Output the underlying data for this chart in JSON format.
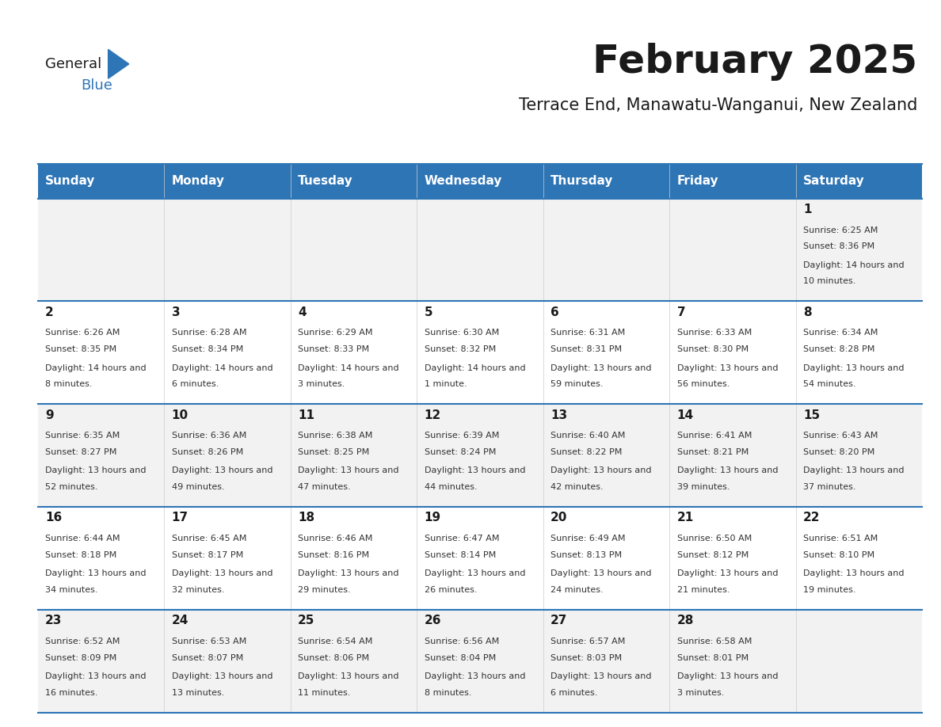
{
  "title": "February 2025",
  "subtitle": "Terrace End, Manawatu-Wanganui, New Zealand",
  "days_of_week": [
    "Sunday",
    "Monday",
    "Tuesday",
    "Wednesday",
    "Thursday",
    "Friday",
    "Saturday"
  ],
  "header_bg": "#2E75B6",
  "header_text": "#FFFFFF",
  "row_bg_odd": "#F2F2F2",
  "row_bg_even": "#FFFFFF",
  "separator_color": "#2E75B6",
  "text_color": "#333333",
  "calendar_data": [
    [
      null,
      null,
      null,
      null,
      null,
      null,
      {
        "day": 1,
        "sunrise": "6:25 AM",
        "sunset": "8:36 PM",
        "daylight": "14 hours and 10 minutes"
      }
    ],
    [
      {
        "day": 2,
        "sunrise": "6:26 AM",
        "sunset": "8:35 PM",
        "daylight": "14 hours and 8 minutes"
      },
      {
        "day": 3,
        "sunrise": "6:28 AM",
        "sunset": "8:34 PM",
        "daylight": "14 hours and 6 minutes"
      },
      {
        "day": 4,
        "sunrise": "6:29 AM",
        "sunset": "8:33 PM",
        "daylight": "14 hours and 3 minutes"
      },
      {
        "day": 5,
        "sunrise": "6:30 AM",
        "sunset": "8:32 PM",
        "daylight": "14 hours and 1 minute"
      },
      {
        "day": 6,
        "sunrise": "6:31 AM",
        "sunset": "8:31 PM",
        "daylight": "13 hours and 59 minutes"
      },
      {
        "day": 7,
        "sunrise": "6:33 AM",
        "sunset": "8:30 PM",
        "daylight": "13 hours and 56 minutes"
      },
      {
        "day": 8,
        "sunrise": "6:34 AM",
        "sunset": "8:28 PM",
        "daylight": "13 hours and 54 minutes"
      }
    ],
    [
      {
        "day": 9,
        "sunrise": "6:35 AM",
        "sunset": "8:27 PM",
        "daylight": "13 hours and 52 minutes"
      },
      {
        "day": 10,
        "sunrise": "6:36 AM",
        "sunset": "8:26 PM",
        "daylight": "13 hours and 49 minutes"
      },
      {
        "day": 11,
        "sunrise": "6:38 AM",
        "sunset": "8:25 PM",
        "daylight": "13 hours and 47 minutes"
      },
      {
        "day": 12,
        "sunrise": "6:39 AM",
        "sunset": "8:24 PM",
        "daylight": "13 hours and 44 minutes"
      },
      {
        "day": 13,
        "sunrise": "6:40 AM",
        "sunset": "8:22 PM",
        "daylight": "13 hours and 42 minutes"
      },
      {
        "day": 14,
        "sunrise": "6:41 AM",
        "sunset": "8:21 PM",
        "daylight": "13 hours and 39 minutes"
      },
      {
        "day": 15,
        "sunrise": "6:43 AM",
        "sunset": "8:20 PM",
        "daylight": "13 hours and 37 minutes"
      }
    ],
    [
      {
        "day": 16,
        "sunrise": "6:44 AM",
        "sunset": "8:18 PM",
        "daylight": "13 hours and 34 minutes"
      },
      {
        "day": 17,
        "sunrise": "6:45 AM",
        "sunset": "8:17 PM",
        "daylight": "13 hours and 32 minutes"
      },
      {
        "day": 18,
        "sunrise": "6:46 AM",
        "sunset": "8:16 PM",
        "daylight": "13 hours and 29 minutes"
      },
      {
        "day": 19,
        "sunrise": "6:47 AM",
        "sunset": "8:14 PM",
        "daylight": "13 hours and 26 minutes"
      },
      {
        "day": 20,
        "sunrise": "6:49 AM",
        "sunset": "8:13 PM",
        "daylight": "13 hours and 24 minutes"
      },
      {
        "day": 21,
        "sunrise": "6:50 AM",
        "sunset": "8:12 PM",
        "daylight": "13 hours and 21 minutes"
      },
      {
        "day": 22,
        "sunrise": "6:51 AM",
        "sunset": "8:10 PM",
        "daylight": "13 hours and 19 minutes"
      }
    ],
    [
      {
        "day": 23,
        "sunrise": "6:52 AM",
        "sunset": "8:09 PM",
        "daylight": "13 hours and 16 minutes"
      },
      {
        "day": 24,
        "sunrise": "6:53 AM",
        "sunset": "8:07 PM",
        "daylight": "13 hours and 13 minutes"
      },
      {
        "day": 25,
        "sunrise": "6:54 AM",
        "sunset": "8:06 PM",
        "daylight": "13 hours and 11 minutes"
      },
      {
        "day": 26,
        "sunrise": "6:56 AM",
        "sunset": "8:04 PM",
        "daylight": "13 hours and 8 minutes"
      },
      {
        "day": 27,
        "sunrise": "6:57 AM",
        "sunset": "8:03 PM",
        "daylight": "13 hours and 6 minutes"
      },
      {
        "day": 28,
        "sunrise": "6:58 AM",
        "sunset": "8:01 PM",
        "daylight": "13 hours and 3 minutes"
      },
      null
    ]
  ],
  "logo_text_general": "General",
  "logo_text_blue": "Blue"
}
